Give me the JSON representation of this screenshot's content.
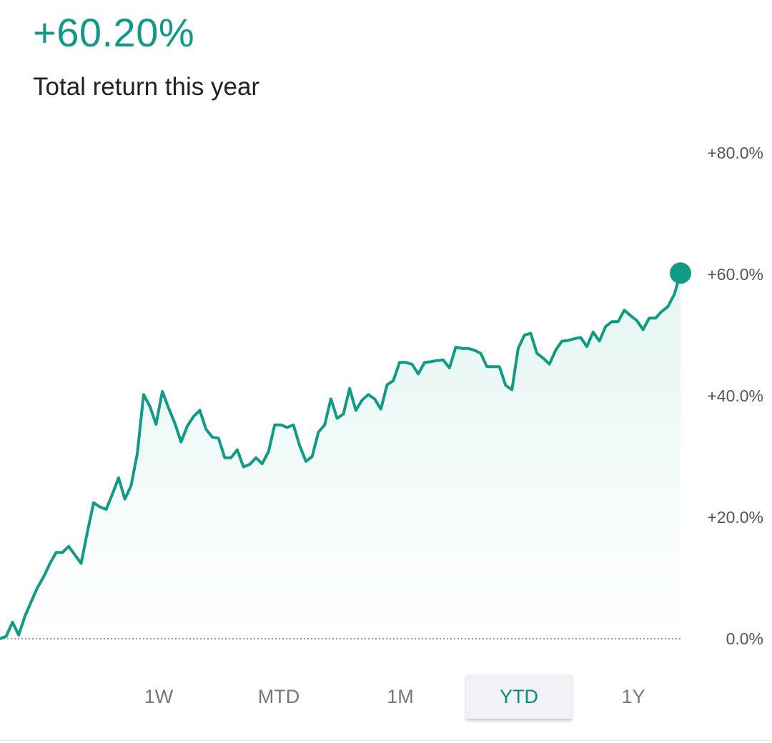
{
  "headline": {
    "value": "+60.20%",
    "caption": "Total return this year"
  },
  "colors": {
    "accent": "#119b87",
    "fill_top": "#cfeee8",
    "baseline": "#9a9a9a"
  },
  "chart_data": {
    "type": "area",
    "title": "",
    "xlabel": "",
    "ylabel": "",
    "ylim": [
      0,
      80
    ],
    "y_ticks": [
      {
        "value": 80,
        "label": "+80.0%"
      },
      {
        "value": 60,
        "label": "+60.0%"
      },
      {
        "value": 40,
        "label": "+40.0%"
      },
      {
        "value": 20,
        "label": "+20.0%"
      },
      {
        "value": 0,
        "label": "0.0%"
      }
    ],
    "baseline": 0,
    "grid": false,
    "legend": "none",
    "series": [
      {
        "values": [
          0.0,
          0.4,
          2.7,
          0.6,
          3.7,
          6.1,
          8.4,
          10.2,
          12.4,
          14.2,
          14.2,
          15.2,
          13.8,
          12.4,
          17.6,
          22.4,
          21.7,
          21.3,
          23.8,
          26.5,
          23.0,
          25.2,
          30.5,
          40.2,
          38.3,
          35.3,
          40.7,
          38.0,
          35.5,
          32.4,
          35.0,
          36.6,
          37.6,
          34.5,
          33.2,
          33.0,
          29.8,
          29.8,
          31.1,
          28.3,
          28.7,
          29.8,
          28.8,
          30.8,
          35.2,
          35.2,
          34.8,
          35.2,
          31.8,
          29.2,
          30.0,
          34.0,
          35.2,
          39.5,
          36.3,
          37.0,
          41.2,
          37.6,
          39.3,
          40.2,
          39.5,
          37.8,
          41.8,
          42.5,
          45.5,
          45.5,
          45.2,
          43.6,
          45.5,
          45.6,
          45.8,
          45.9,
          44.6,
          48.0,
          47.8,
          47.8,
          47.5,
          47.0,
          44.8,
          44.8,
          44.8,
          41.7,
          41.0,
          47.8,
          50.0,
          50.3,
          47.0,
          46.2,
          45.2,
          47.5,
          49.0,
          49.1,
          49.4,
          49.6,
          48.1,
          50.5,
          49.0,
          51.4,
          52.2,
          52.2,
          54.1,
          53.2,
          52.4,
          50.9,
          52.8,
          52.8,
          53.9,
          54.7,
          56.7,
          60.2
        ]
      }
    ]
  },
  "range_selector": {
    "options": [
      "1W",
      "MTD",
      "1M",
      "YTD",
      "1Y"
    ],
    "selected": "YTD"
  }
}
